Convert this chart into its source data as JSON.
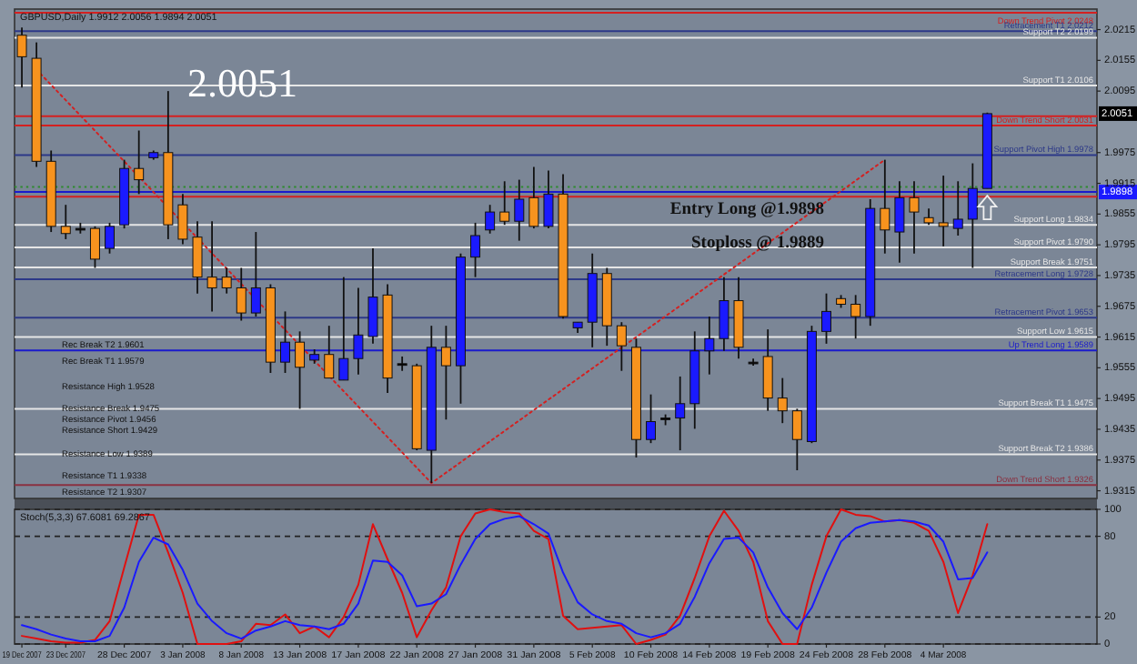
{
  "chart_data": [
    {
      "type": "candlestick",
      "title": "GBPUSD,Daily 1.9912 2.0056 1.9894 2.0051",
      "categories": [
        null,
        null,
        null,
        null,
        null,
        null,
        null,
        null,
        null,
        null,
        null,
        null,
        null,
        null,
        null,
        null,
        null,
        null,
        null,
        null,
        null,
        null,
        null,
        null,
        null,
        null,
        null,
        null,
        null,
        null,
        null,
        null,
        null,
        null,
        null,
        null,
        null,
        null,
        null,
        null,
        null,
        null,
        null,
        null,
        null,
        null,
        null,
        null,
        null,
        null,
        null,
        null,
        null,
        null,
        null,
        null,
        null,
        null,
        null,
        null,
        null,
        null,
        null,
        null,
        null,
        null,
        null,
        null,
        null,
        null,
        null,
        null,
        null,
        null
      ],
      "ohlc": [
        [
          2.0204,
          2.0219,
          2.0102,
          2.0162
        ],
        [
          2.0159,
          2.019,
          1.9947,
          1.9958
        ],
        [
          1.9958,
          1.9979,
          1.982,
          1.9831
        ],
        [
          1.9831,
          1.9873,
          1.9806,
          1.9817
        ],
        [
          1.9827,
          1.9838,
          1.9817,
          1.9827
        ],
        [
          1.9827,
          1.9831,
          1.975,
          1.9767
        ],
        [
          1.9788,
          1.9838,
          1.9778,
          1.9831
        ],
        [
          1.9834,
          1.9961,
          1.9827,
          1.9944
        ],
        [
          1.9944,
          2.0018,
          1.9894,
          1.9922
        ],
        [
          1.9965,
          1.9979,
          1.9961,
          1.9975
        ],
        [
          1.9975,
          2.0095,
          1.9806,
          1.9834
        ],
        [
          1.9873,
          1.9894,
          1.9796,
          1.9806
        ],
        [
          1.981,
          1.9841,
          1.97,
          1.9732
        ],
        [
          1.9732,
          1.9841,
          1.9665,
          1.9711
        ],
        [
          1.9732,
          1.975,
          1.97,
          1.9711
        ],
        [
          1.9711,
          1.975,
          1.9647,
          1.9662
        ],
        [
          1.9662,
          1.982,
          1.9655,
          1.9711
        ],
        [
          1.9711,
          1.9718,
          1.9545,
          1.9566
        ],
        [
          1.9566,
          1.9665,
          1.9545,
          1.9605
        ],
        [
          1.9605,
          1.9626,
          1.9475,
          1.9556
        ],
        [
          1.957,
          1.9591,
          1.9563,
          1.9581
        ],
        [
          1.9581,
          1.9637,
          1.9535,
          1.9535
        ],
        [
          1.9531,
          1.9732,
          1.9531,
          1.9573
        ],
        [
          1.9573,
          1.9711,
          1.9542,
          1.9619
        ],
        [
          1.9616,
          1.9788,
          1.9602,
          1.9693
        ],
        [
          1.9697,
          1.9718,
          1.9506,
          1.9535
        ],
        [
          1.9563,
          1.9577,
          1.9549,
          1.9563
        ],
        [
          1.9559,
          1.9563,
          1.9394,
          1.9397
        ],
        [
          1.9394,
          1.9637,
          1.933,
          1.9595
        ],
        [
          1.9595,
          1.9637,
          1.9454,
          1.9559
        ],
        [
          1.9559,
          1.9778,
          1.9485,
          1.9771
        ],
        [
          1.9771,
          1.9838,
          1.9732,
          1.9813
        ],
        [
          1.9824,
          1.9873,
          1.9817,
          1.9859
        ],
        [
          1.9859,
          1.9919,
          1.9834,
          1.9841
        ],
        [
          1.9841,
          1.9922,
          1.9803,
          1.9884
        ],
        [
          1.9887,
          1.9947,
          1.9827,
          1.9831
        ],
        [
          1.9831,
          1.994,
          1.9827,
          1.9894
        ],
        [
          1.9894,
          1.9933,
          1.9651,
          1.9655
        ],
        [
          1.9633,
          1.9644,
          1.9623,
          1.9644
        ],
        [
          1.9644,
          1.9778,
          1.9595,
          1.9739
        ],
        [
          1.9739,
          1.975,
          1.9598,
          1.9637
        ],
        [
          1.9637,
          1.9644,
          1.9549,
          1.9598
        ],
        [
          1.9595,
          1.9612,
          1.938,
          1.9415
        ],
        [
          1.9415,
          1.9503,
          1.9408,
          1.945
        ],
        [
          1.9457,
          1.9464,
          1.9443,
          1.9457
        ],
        [
          1.9457,
          1.9538,
          1.9394,
          1.9485
        ],
        [
          1.9485,
          1.9626,
          1.9436,
          1.9588
        ],
        [
          1.9588,
          1.9655,
          1.9542,
          1.9612
        ],
        [
          1.9612,
          1.9732,
          1.9588,
          1.9686
        ],
        [
          1.9686,
          1.9732,
          1.9573,
          1.9595
        ],
        [
          1.9566,
          1.9573,
          1.9559,
          1.9566
        ],
        [
          1.9577,
          1.963,
          1.9471,
          1.9496
        ],
        [
          1.9496,
          1.9535,
          1.9447,
          1.9471
        ],
        [
          1.9471,
          1.9475,
          1.9355,
          1.9415
        ],
        [
          1.9411,
          1.9637,
          1.9408,
          1.9626
        ],
        [
          1.9626,
          1.97,
          1.9602,
          1.9665
        ],
        [
          1.969,
          1.9697,
          1.9672,
          1.9679
        ],
        [
          1.9679,
          1.9697,
          1.9612,
          1.9655
        ],
        [
          1.9655,
          1.9884,
          1.9637,
          1.9866
        ],
        [
          1.9866,
          1.9961,
          1.9778,
          1.9824
        ],
        [
          1.982,
          1.9919,
          1.976,
          1.9887
        ],
        [
          1.9887,
          1.9919,
          1.9778,
          1.9859
        ],
        [
          1.9848,
          1.9866,
          1.9834,
          1.9838
        ],
        [
          1.9838,
          1.993,
          1.9792,
          1.9831
        ],
        [
          1.9827,
          1.9919,
          1.9813,
          1.9845
        ],
        [
          1.9845,
          1.9954,
          1.975,
          1.9905
        ],
        [
          1.9905,
          2.0053,
          1.9905,
          2.0051
        ],
        null,
        null,
        null,
        null,
        null,
        null,
        null
      ],
      "colors": [
        "#f7931e",
        "#f7931e",
        "#f7931e",
        "#f7931e",
        "#000000",
        "#f7931e",
        "#1a1aff",
        "#1a1aff",
        "#f7931e",
        "#1a1aff",
        "#f7931e",
        "#f7931e",
        "#f7931e",
        "#f7931e",
        "#f7931e",
        "#f7931e",
        "#1a1aff",
        "#f7931e",
        "#1a1aff",
        "#f7931e",
        "#1a1aff",
        "#f7931e",
        "#1a1aff",
        "#1a1aff",
        "#1a1aff",
        "#f7931e",
        "#000000",
        "#f7931e",
        "#1a1aff",
        "#f7931e",
        "#1a1aff",
        "#1a1aff",
        "#1a1aff",
        "#f7931e",
        "#1a1aff",
        "#f7931e",
        "#1a1aff",
        "#f7931e",
        "#1a1aff",
        "#1a1aff",
        "#f7931e",
        "#f7931e",
        "#f7931e",
        "#1a1aff",
        "#000000",
        "#1a1aff",
        "#1a1aff",
        "#1a1aff",
        "#1a1aff",
        "#f7931e",
        "#000000",
        "#f7931e",
        "#f7931e",
        "#f7931e",
        "#1a1aff",
        "#1a1aff",
        "#f7931e",
        "#f7931e",
        "#1a1aff",
        "#f7931e",
        "#1a1aff",
        "#f7931e",
        "#f7931e",
        "#f7931e",
        "#1a1aff",
        "#1a1aff",
        "#1a1aff",
        null,
        null,
        null,
        null,
        null,
        null,
        null
      ],
      "series": [
        {
          "type": "line",
          "color": "#d42020",
          "line_style": "dotted",
          "values": [
            null,
            2.0137,
            null,
            null,
            null,
            null,
            null,
            null,
            null,
            null,
            null,
            null,
            null,
            null,
            null,
            null,
            null,
            null,
            null,
            null,
            null,
            null,
            null,
            null,
            null,
            null,
            null,
            null,
            1.933,
            null,
            null,
            null,
            null,
            null,
            null,
            null,
            null,
            null,
            null,
            null,
            null,
            null,
            null,
            null,
            null,
            null,
            null,
            null,
            null,
            null,
            null,
            null,
            null,
            null,
            null,
            null,
            null,
            null,
            null,
            1.9961,
            null,
            null,
            null,
            null,
            null,
            null,
            null,
            null,
            null,
            null,
            null,
            null,
            null,
            null
          ]
        }
      ],
      "ylim": [
        1.93,
        2.0255
      ],
      "yticks": [
        2.0215,
        2.0155,
        2.0095,
        1.9975,
        1.9915,
        1.9855,
        1.9795,
        1.9735,
        1.9675,
        1.9615,
        1.9555,
        1.9495,
        1.9435,
        1.9375,
        1.9315
      ],
      "tick_labels": "y",
      "ref_lines": [
        {
          "axis": "y",
          "value": 2.0248,
          "label": "Down Trend Pivot 2.0248",
          "color": "#d42020"
        },
        {
          "axis": "y",
          "value": 2.0212,
          "label": "Retracement T1 2.0212",
          "color": "#2c3888"
        },
        {
          "axis": "y",
          "value": 2.0199,
          "label": "Support T2 2.0199",
          "color": "#e6e6e6"
        },
        {
          "axis": "y",
          "value": 2.0106,
          "label": "Support T1 2.0106",
          "color": "#e6e6e6"
        },
        {
          "axis": "y",
          "value": 2.0046,
          "color": "#d42020"
        },
        {
          "axis": "y",
          "value": 2.0028,
          "label": "Down Trend Short 2.0031",
          "color": "#d42020"
        },
        {
          "axis": "y",
          "value": 1.997,
          "label": "Support Pivot High 1.9978",
          "color": "#2c3888"
        },
        {
          "axis": "y",
          "value": 1.9908,
          "color": "#2e8b2e",
          "line_style": "dotted"
        },
        {
          "axis": "y",
          "value": 1.9898,
          "color": "#1a1acc"
        },
        {
          "axis": "y",
          "value": 1.9889,
          "color": "#d42020"
        },
        {
          "axis": "y",
          "value": 1.9834,
          "label": "Support Long 1.9834",
          "color": "#e6e6e6"
        },
        {
          "axis": "y",
          "value": 1.979,
          "label": "Support Pivot 1.9790",
          "color": "#e6e6e6"
        },
        {
          "axis": "y",
          "value": 1.9751,
          "label": "Support Break 1.9751",
          "color": "#e6e6e6"
        },
        {
          "axis": "y",
          "value": 1.9728,
          "label": "Retracement Long 1.9728",
          "color": "#2c3888"
        },
        {
          "axis": "y",
          "value": 1.9653,
          "label": "Retracement Pivot 1.9653",
          "color": "#2c3888"
        },
        {
          "axis": "y",
          "value": 1.9615,
          "label": "Support Low 1.9615",
          "color": "#e6e6e6"
        },
        {
          "axis": "y",
          "value": 1.9589,
          "label": "Up Trend Long 1.9589",
          "color": "#1a1acc"
        },
        {
          "axis": "y",
          "value": 1.9475,
          "label": "Support Break T1 1.9475",
          "color": "#e6e6e6"
        },
        {
          "axis": "y",
          "value": 1.9386,
          "label": "Support Break T2 1.9386",
          "color": "#e6e6e6"
        },
        {
          "axis": "y",
          "value": 1.9326,
          "label": "Down Trend Short 1.9326",
          "color": "#8a3040"
        }
      ],
      "annotations": [
        "2.0051",
        {
          "text": "Entry Long @1.9898",
          "y": 1.9898
        },
        {
          "text": "Stoploss @ 1.9889",
          "y": 1.9889
        },
        "2.0051",
        "1.9898",
        "Rec Break T2 1.9601",
        "Rec Break T1 1.9579",
        "Resistance High 1.9528",
        "Resistance Break 1.9475",
        "Resistance Pivot 1.9456",
        "Resistance Short 1.9429",
        "Resistance Low 1.9389",
        "Resistance T1 1.9338",
        "Resistance T2 1.9307"
      ]
    },
    {
      "type": "line",
      "title": "Stoch(5,3,3) 67.6081 69.2867",
      "categories": [
        "19 Dec 2007",
        null,
        null,
        "23 Dec 2007",
        null,
        null,
        null,
        "28 Dec 2007",
        null,
        null,
        null,
        "3 Jan 2008",
        null,
        null,
        null,
        "8 Jan 2008",
        null,
        null,
        null,
        "13 Jan 2008",
        null,
        null,
        null,
        "17 Jan 2008",
        null,
        null,
        null,
        "22 Jan 2008",
        null,
        null,
        null,
        "27 Jan 2008",
        null,
        null,
        null,
        "31 Jan 2008",
        null,
        null,
        null,
        "5 Feb 2008",
        null,
        null,
        null,
        "10 Feb 2008",
        null,
        null,
        null,
        "14 Feb 2008",
        null,
        null,
        null,
        "19 Feb 2008",
        null,
        null,
        null,
        "24 Feb 2008",
        null,
        null,
        null,
        "28 Feb 2008",
        null,
        null,
        null,
        "4 Mar 2008",
        null,
        null,
        null,
        null,
        null,
        null,
        null,
        null,
        null,
        null
      ],
      "series": [
        {
          "color": "#e01010",
          "values": [
            6,
            4,
            2,
            1,
            1,
            3,
            17,
            57,
            96,
            96,
            68,
            38,
            0,
            0,
            0,
            2,
            15,
            14,
            22,
            8,
            13,
            5,
            20,
            44,
            89,
            63,
            38,
            5,
            25,
            42,
            80,
            97,
            100,
            98,
            97,
            84,
            78,
            21,
            11,
            12,
            13,
            14,
            0,
            3,
            7,
            21,
            49,
            80,
            99,
            84,
            61,
            17,
            0,
            0,
            44,
            80,
            100,
            96,
            95,
            91,
            92,
            90,
            84,
            61,
            23,
            51,
            89,
            null,
            null,
            null,
            null,
            null,
            null,
            null
          ]
        },
        {
          "color": "#1a1aff",
          "values": [
            14,
            11,
            7,
            4,
            2,
            2,
            6,
            27,
            61,
            79,
            74,
            55,
            30,
            17,
            8,
            4,
            10,
            13,
            17,
            14,
            13,
            11,
            15,
            30,
            62,
            61,
            51,
            28,
            30,
            37,
            59,
            78,
            89,
            93,
            95,
            89,
            82,
            53,
            31,
            22,
            17,
            15,
            8,
            5,
            8,
            15,
            35,
            60,
            78,
            79,
            68,
            42,
            23,
            11,
            27,
            53,
            76,
            86,
            90,
            91,
            92,
            91,
            88,
            76,
            48,
            49,
            68,
            null,
            null,
            null,
            null,
            null,
            null,
            null
          ]
        }
      ],
      "ylim": [
        0,
        100
      ],
      "yticks": [
        0,
        20,
        80,
        100
      ],
      "grid": "y"
    }
  ]
}
